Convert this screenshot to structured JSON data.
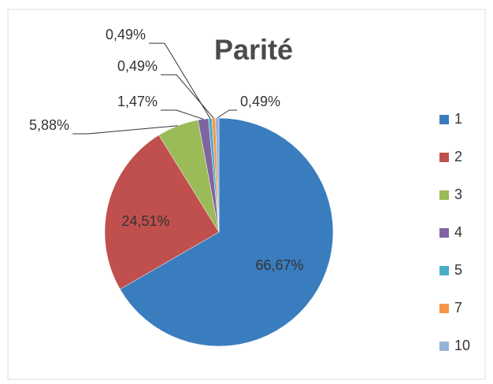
{
  "chart_data": {
    "type": "pie",
    "title": "Parité",
    "categories": [
      "1",
      "2",
      "3",
      "4",
      "5",
      "7",
      "10"
    ],
    "values": [
      66.67,
      24.51,
      5.88,
      1.47,
      0.49,
      0.49,
      0.49
    ],
    "value_labels": [
      "66,67%",
      "24,51%",
      "5,88%",
      "1,47%",
      "0,49%",
      "0,49%",
      "0,49%"
    ],
    "colors": [
      "#3a7dbf",
      "#c0504d",
      "#9bbb59",
      "#8064a2",
      "#4bacc6",
      "#f79646",
      "#95b3d7"
    ],
    "legend": "right"
  }
}
